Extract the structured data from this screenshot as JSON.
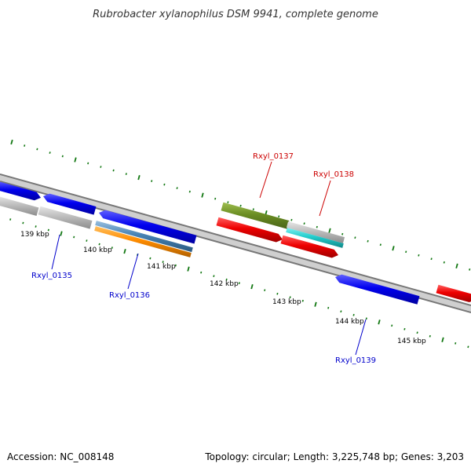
{
  "title": "Rubrobacter xylanophilus DSM 9941, complete genome",
  "footer": {
    "accession": "Accession: NC_008148",
    "topology": "Topology: circular; Length: 3,225,748 bp; Genes: 3,203"
  },
  "ticks": [
    "139 kbp",
    "140 kbp",
    "141 kbp",
    "142 kbp",
    "143 kbp",
    "144 kbp",
    "145 kbp"
  ],
  "genes": [
    {
      "name": "Rxyl_0135",
      "color": "#0000cc"
    },
    {
      "name": "Rxyl_0136",
      "color": "#0000cc"
    },
    {
      "name": "Rxyl_0137",
      "color": "#cc0000"
    },
    {
      "name": "Rxyl_0138",
      "color": "#cc0000"
    },
    {
      "name": "Rxyl_0139",
      "color": "#0000cc"
    }
  ],
  "colors": {
    "forward_cds": "#ee0000",
    "reverse_cds": "#0000ee",
    "gray_feature": "#bbbbbb",
    "olive_feature": "#6b8e23",
    "cyan_feature": "#22cccc",
    "orange_feature": "#ff8c00",
    "steelblue_feature": "#4682b4",
    "backbone": "#777777",
    "tick_marks": "#117711"
  }
}
